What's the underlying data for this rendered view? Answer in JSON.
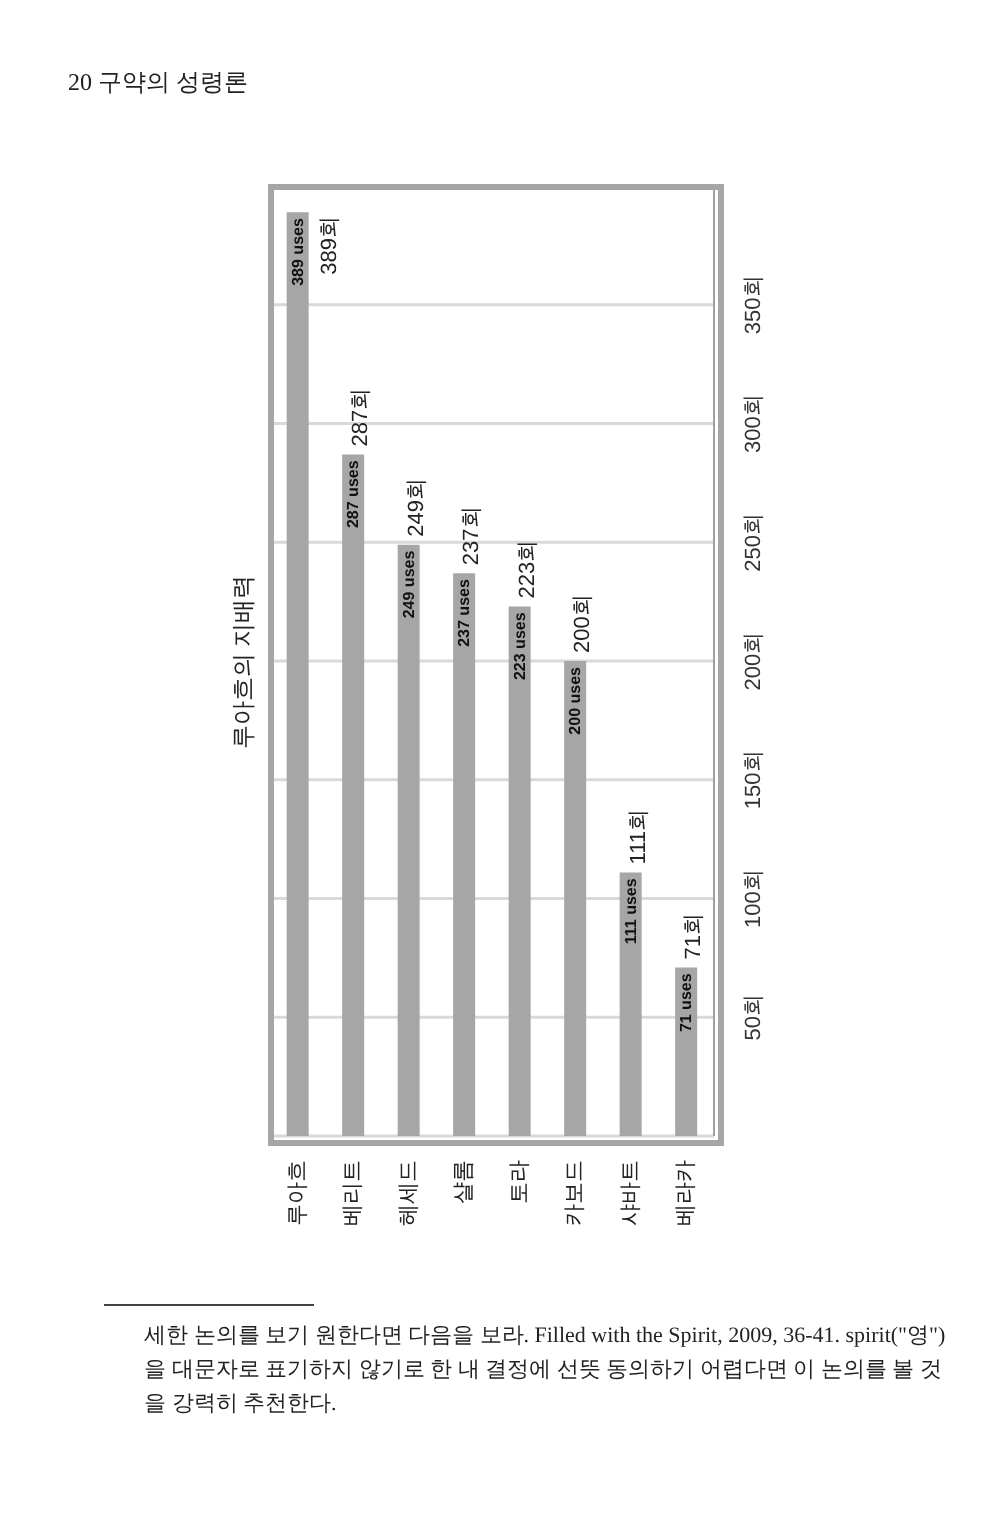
{
  "chart_data": {
    "type": "bar",
    "title": "루아흐의 지배력",
    "categories": [
      "루아흐",
      "베리트",
      "헤세드",
      "샬롬",
      "토라",
      "카보드",
      "샤바트",
      "베라카"
    ],
    "values": [
      389,
      287,
      249,
      237,
      223,
      200,
      111,
      71
    ],
    "color": "#a6a6a6",
    "value_labels": [
      "389 uses",
      "287 uses",
      "249 uses",
      "237 uses",
      "223 uses",
      "200 uses",
      "111 uses",
      "71 uses"
    ],
    "ylim": [
      0,
      400
    ],
    "yticks": [
      {
        "value": 50,
        "label": "50회"
      },
      {
        "value": 100,
        "label": "100회"
      },
      {
        "value": 150,
        "label": "150회"
      },
      {
        "value": 200,
        "label": "200회"
      },
      {
        "value": 250,
        "label": "250회"
      },
      {
        "value": 300,
        "label": "300회"
      },
      {
        "value": 350,
        "label": "350회"
      }
    ],
    "grid": "y",
    "annotations": [
      "20 구약의 성령론",
      "세한 논의를 보기 원한다면 다음을 보라. Filled with the Spirit, 2009, 36-41. spirit(\"영\")을 대문자로 표기하지 않기로 한 내 결정에 선뜻 동의하기 어렵다면 이 논의를 볼 것을 강력히 추천한다.",
      {
        "text": "389회",
        "x": "루아흐",
        "y": 389
      },
      {
        "text": "287회",
        "x": "베리트",
        "y": 287
      },
      {
        "text": "249회",
        "x": "헤세드",
        "y": 249
      },
      {
        "text": "237회",
        "x": "샬롬",
        "y": 237
      },
      {
        "text": "223회",
        "x": "토라",
        "y": 223
      },
      {
        "text": "200회",
        "x": "카보드",
        "y": 200
      },
      {
        "text": "111회",
        "x": "샤바트",
        "y": 111
      },
      {
        "text": "71회",
        "x": "베라카",
        "y": 71
      }
    ]
  }
}
